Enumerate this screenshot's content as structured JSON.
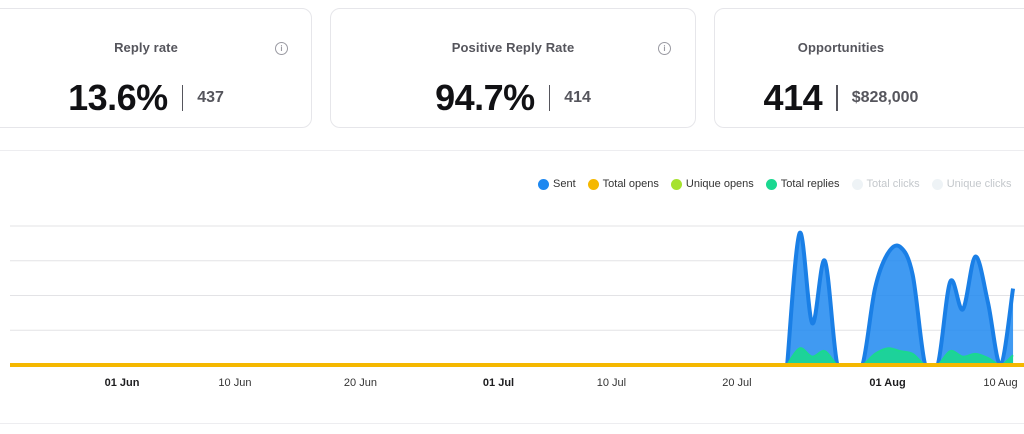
{
  "cards": [
    {
      "title": "Reply rate",
      "value": "13.6%",
      "sub": "437",
      "info_icon": "info-icon"
    },
    {
      "title": "Positive Reply Rate",
      "value": "94.7%",
      "sub": "414",
      "info_icon": "info-icon"
    },
    {
      "title": "Opportunities",
      "value": "414",
      "sub": "$828,000"
    }
  ],
  "legend": [
    {
      "label": "Sent",
      "color": "#1e88f0",
      "active": true
    },
    {
      "label": "Total opens",
      "color": "#f5b800",
      "active": true
    },
    {
      "label": "Unique opens",
      "color": "#a6e22e",
      "active": true
    },
    {
      "label": "Total replies",
      "color": "#1ad890",
      "active": true
    },
    {
      "label": "Total clicks",
      "color": "#eef3f6",
      "active": false
    },
    {
      "label": "Unique clicks",
      "color": "#eef3f6",
      "active": false
    }
  ],
  "chart_data": {
    "type": "area",
    "x_ticks": [
      {
        "label": "01 Jun",
        "bold": true
      },
      {
        "label": "10 Jun",
        "bold": false
      },
      {
        "label": "20 Jun",
        "bold": false
      },
      {
        "label": "01 Jul",
        "bold": true
      },
      {
        "label": "10 Jul",
        "bold": false
      },
      {
        "label": "20 Jul",
        "bold": false
      },
      {
        "label": "01 Aug",
        "bold": true
      },
      {
        "label": "10 Aug",
        "bold": false
      }
    ],
    "grid": true,
    "legend_position": "top-right",
    "series": [
      {
        "name": "Sent",
        "color": "#1e88f0",
        "points": [
          [
            "24 Jul",
            0
          ],
          [
            "25 Jul",
            0.95
          ],
          [
            "26 Jul",
            0.3
          ],
          [
            "27 Jul",
            0.75
          ],
          [
            "28 Jul",
            0
          ],
          [
            "29 Jul",
            0
          ],
          [
            "30 Jul",
            0
          ],
          [
            "31 Jul",
            0.55
          ],
          [
            "01 Aug",
            0.8
          ],
          [
            "02 Aug",
            0.85
          ],
          [
            "03 Aug",
            0.65
          ],
          [
            "04 Aug",
            0
          ],
          [
            "05 Aug",
            0
          ],
          [
            "06 Aug",
            0.6
          ],
          [
            "07 Aug",
            0.4
          ],
          [
            "08 Aug",
            0.78
          ],
          [
            "09 Aug",
            0.45
          ],
          [
            "10 Aug",
            0
          ],
          [
            "11 Aug",
            0.55
          ]
        ]
      },
      {
        "name": "Total replies",
        "color": "#1ad890",
        "points": [
          [
            "24 Jul",
            0
          ],
          [
            "25 Jul",
            0.12
          ],
          [
            "26 Jul",
            0.06
          ],
          [
            "27 Jul",
            0.1
          ],
          [
            "28 Jul",
            0
          ],
          [
            "29 Jul",
            0
          ],
          [
            "30 Jul",
            0
          ],
          [
            "31 Jul",
            0.08
          ],
          [
            "01 Aug",
            0.12
          ],
          [
            "02 Aug",
            0.1
          ],
          [
            "03 Aug",
            0.08
          ],
          [
            "04 Aug",
            0
          ],
          [
            "05 Aug",
            0
          ],
          [
            "06 Aug",
            0.1
          ],
          [
            "07 Aug",
            0.06
          ],
          [
            "08 Aug",
            0.08
          ],
          [
            "09 Aug",
            0.05
          ],
          [
            "10 Aug",
            0
          ],
          [
            "11 Aug",
            0.07
          ]
        ]
      },
      {
        "name": "Total opens",
        "color": "#f5b800",
        "points": [
          [
            "01 Jun",
            0
          ],
          [
            "11 Aug",
            0
          ]
        ]
      }
    ]
  }
}
